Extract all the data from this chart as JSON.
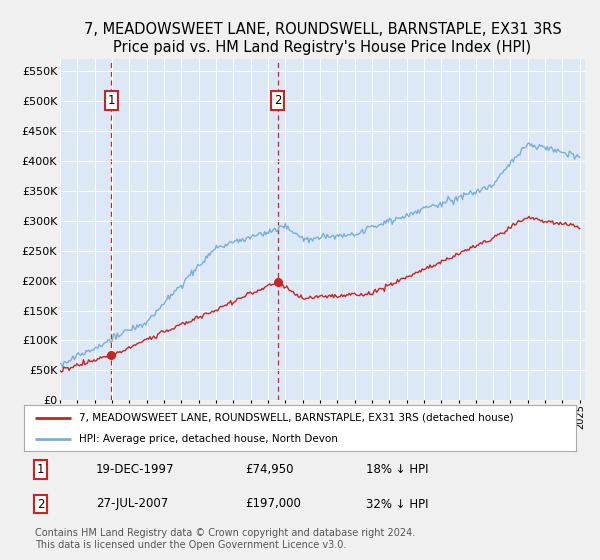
{
  "title": "7, MEADOWSWEET LANE, ROUNDSWELL, BARNSTAPLE, EX31 3RS",
  "subtitle": "Price paid vs. HM Land Registry's House Price Index (HPI)",
  "ylim": [
    0,
    570000
  ],
  "yticks": [
    0,
    50000,
    100000,
    150000,
    200000,
    250000,
    300000,
    350000,
    400000,
    450000,
    500000,
    550000
  ],
  "ytick_labels": [
    "£0",
    "£50K",
    "£100K",
    "£150K",
    "£200K",
    "£250K",
    "£300K",
    "£350K",
    "£400K",
    "£450K",
    "£500K",
    "£550K"
  ],
  "plot_bg_color": "#dce8f5",
  "grid_color": "#ffffff",
  "hpi_color": "#7aafd4",
  "price_color": "#cc2222",
  "dashed_color": "#cc2222",
  "title_fontsize": 10.5,
  "legend_label_red": "7, MEADOWSWEET LANE, ROUNDSWELL, BARNSTAPLE, EX31 3RS (detached house)",
  "legend_label_blue": "HPI: Average price, detached house, North Devon",
  "transaction1_date": "19-DEC-1997",
  "transaction1_price": 74950,
  "transaction1_label": "£74,950",
  "transaction1_pct": "18% ↓ HPI",
  "transaction1_x": 1997.97,
  "transaction2_date": "27-JUL-2007",
  "transaction2_price": 197000,
  "transaction2_label": "£197,000",
  "transaction2_pct": "32% ↓ HPI",
  "transaction2_x": 2007.56,
  "footer": "Contains HM Land Registry data © Crown copyright and database right 2024.\nThis data is licensed under the Open Government Licence v3.0."
}
